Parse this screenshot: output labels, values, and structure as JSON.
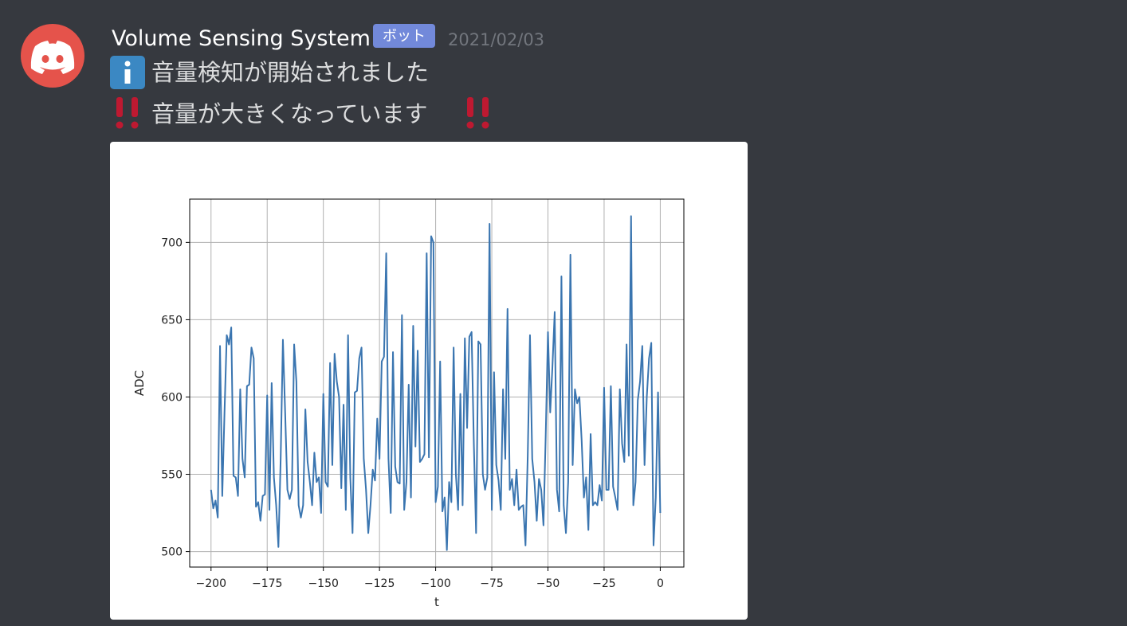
{
  "message": {
    "username": "Volume Sensing System",
    "badge": "ボット",
    "timestamp": "2021/02/03",
    "lines": [
      "音量検知が開始されました",
      "音量が大きくなっています"
    ]
  },
  "chart_data": {
    "type": "line",
    "xlabel": "t",
    "ylabel": "ADC",
    "color": "#3a75b0",
    "grid": true,
    "xlim": [
      -209.5,
      10.5
    ],
    "ylim": [
      490,
      728
    ],
    "xticks": [
      {
        "value": -200,
        "label": "−200"
      },
      {
        "value": -175,
        "label": "−175"
      },
      {
        "value": -150,
        "label": "−150"
      },
      {
        "value": -125,
        "label": "−125"
      },
      {
        "value": -100,
        "label": "−100"
      },
      {
        "value": -75,
        "label": "−75"
      },
      {
        "value": -50,
        "label": "−50"
      },
      {
        "value": -25,
        "label": "−25"
      },
      0
    ],
    "yticks": [
      500,
      550,
      600,
      650,
      700
    ],
    "x": [
      -200,
      -199,
      -198,
      -197,
      -196,
      -195,
      -194,
      -193,
      -192,
      -191,
      -190,
      -189,
      -188,
      -187,
      -186,
      -185,
      -184,
      -183,
      -182,
      -181,
      -180,
      -179,
      -178,
      -177,
      -176,
      -175,
      -174,
      -173,
      -172,
      -171,
      -170,
      -169,
      -168,
      -167,
      -166,
      -165,
      -164,
      -163,
      -162,
      -161,
      -160,
      -159,
      -158,
      -157,
      -156,
      -155,
      -154,
      -153,
      -152,
      -151,
      -150,
      -149,
      -148,
      -147,
      -146,
      -145,
      -144,
      -143,
      -142,
      -141,
      -140,
      -139,
      -138,
      -137,
      -136,
      -135,
      -134,
      -133,
      -132,
      -131,
      -130,
      -129,
      -128,
      -127,
      -126,
      -125,
      -124,
      -123,
      -122,
      -121,
      -120,
      -119,
      -118,
      -117,
      -116,
      -115,
      -114,
      -113,
      -112,
      -111,
      -110,
      -109,
      -108,
      -107,
      -106,
      -105,
      -104,
      -103,
      -102,
      -101,
      -100,
      -99,
      -98,
      -97,
      -96,
      -95,
      -94,
      -93,
      -92,
      -91,
      -90,
      -89,
      -88,
      -87,
      -86,
      -85,
      -84,
      -83,
      -82,
      -81,
      -80,
      -79,
      -78,
      -77,
      -76,
      -75,
      -74,
      -73,
      -72,
      -71,
      -70,
      -69,
      -68,
      -67,
      -66,
      -65,
      -64,
      -63,
      -62,
      -61,
      -60,
      -59,
      -58,
      -57,
      -56,
      -55,
      -54,
      -53,
      -52,
      -51,
      -50,
      -49,
      -48,
      -47,
      -46,
      -45,
      -44,
      -43,
      -42,
      -41,
      -40,
      -39,
      -38,
      -37,
      -36,
      -35,
      -34,
      -33,
      -32,
      -31,
      -30,
      -29,
      -28,
      -27,
      -26,
      -25,
      -24,
      -23,
      -22,
      -21,
      -20,
      -19,
      -18,
      -17,
      -16,
      -15,
      -14,
      -13,
      -12,
      -11,
      -10,
      -9,
      -8,
      -7,
      -6,
      -5,
      -4,
      -3,
      -2,
      -1,
      0
    ],
    "values": [
      540,
      528,
      533,
      522,
      633,
      536,
      590,
      640,
      634,
      645,
      549,
      548,
      536,
      605,
      560,
      548,
      607,
      608,
      632,
      625,
      529,
      532,
      520,
      536,
      537,
      601,
      527,
      609,
      548,
      530,
      503,
      560,
      637,
      590,
      540,
      534,
      540,
      634,
      610,
      530,
      522,
      530,
      592,
      558,
      545,
      530,
      564,
      545,
      548,
      525,
      602,
      545,
      542,
      622,
      556,
      628,
      610,
      600,
      541,
      595,
      527,
      640,
      548,
      512,
      603,
      604,
      625,
      632,
      560,
      540,
      512,
      530,
      553,
      546,
      586,
      560,
      623,
      626,
      693,
      560,
      525,
      629,
      555,
      545,
      544,
      653,
      527,
      545,
      608,
      535,
      646,
      568,
      630,
      558,
      560,
      563,
      693,
      561,
      704,
      700,
      532,
      542,
      623,
      526,
      535,
      501,
      545,
      532,
      632,
      550,
      527,
      602,
      530,
      638,
      580,
      639,
      642,
      570,
      512,
      636,
      634,
      550,
      540,
      548,
      712,
      527,
      616,
      556,
      546,
      527,
      605,
      560,
      657,
      540,
      547,
      530,
      553,
      527,
      529,
      530,
      504,
      562,
      640,
      560,
      545,
      520,
      547,
      540,
      517,
      575,
      642,
      590,
      620,
      655,
      540,
      526,
      678,
      530,
      512,
      545,
      692,
      556,
      605,
      596,
      600,
      572,
      535,
      548,
      514,
      576,
      530,
      532,
      530,
      543,
      533,
      606,
      540,
      540,
      607,
      542,
      535,
      527,
      605,
      570,
      558,
      634,
      562,
      717,
      530,
      545,
      598,
      610,
      633,
      556,
      600,
      625,
      635,
      504,
      535,
      603,
      525
    ]
  }
}
